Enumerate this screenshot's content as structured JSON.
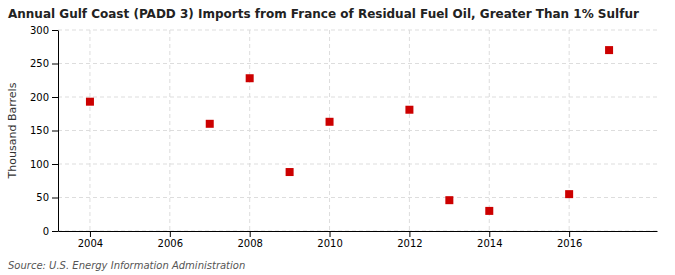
{
  "chart_data": {
    "type": "scatter",
    "title": "Annual Gulf Coast (PADD 3) Imports from France of Residual Fuel Oil, Greater Than 1% Sulfur",
    "y_label": "Thousand Barrels",
    "annotations": [
      "Source: U.S. Energy Information Administration"
    ],
    "x": [
      2004,
      2007,
      2008,
      2009,
      2010,
      2012,
      2013,
      2014,
      2016,
      2017
    ],
    "values": [
      193,
      160,
      228,
      88,
      163,
      181,
      46,
      30,
      55,
      270
    ],
    "color": "#cc0000",
    "marker": "square",
    "xlim": [
      2003.2,
      2018.2
    ],
    "ylim": [
      0,
      300
    ],
    "xticks": [
      2004,
      2006,
      2008,
      2010,
      2012,
      2014,
      2016
    ],
    "yticks": [
      0,
      50,
      100,
      150,
      200,
      250,
      300
    ],
    "grid": true
  }
}
